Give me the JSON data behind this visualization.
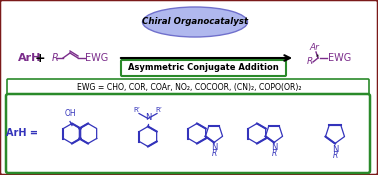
{
  "bg_color": "#ffffff",
  "border_color": "#7B1A1A",
  "green_border": "#2a8a2a",
  "purple": "#7B2D8B",
  "blue_struct": "#3333bb",
  "ellipse_color_face": "#b0b8ee",
  "ellipse_color_edge": "#7070cc",
  "title_text": "Chiral Organocatalyst",
  "arrow_label": "Asymmetric Conjugate Addition",
  "ewg_text": "EWG = CHO, COR, COAr, NO₂, COCOOR, (CN)₂, COPO(OR)₂",
  "figw": 3.78,
  "figh": 1.75,
  "dpi": 100
}
